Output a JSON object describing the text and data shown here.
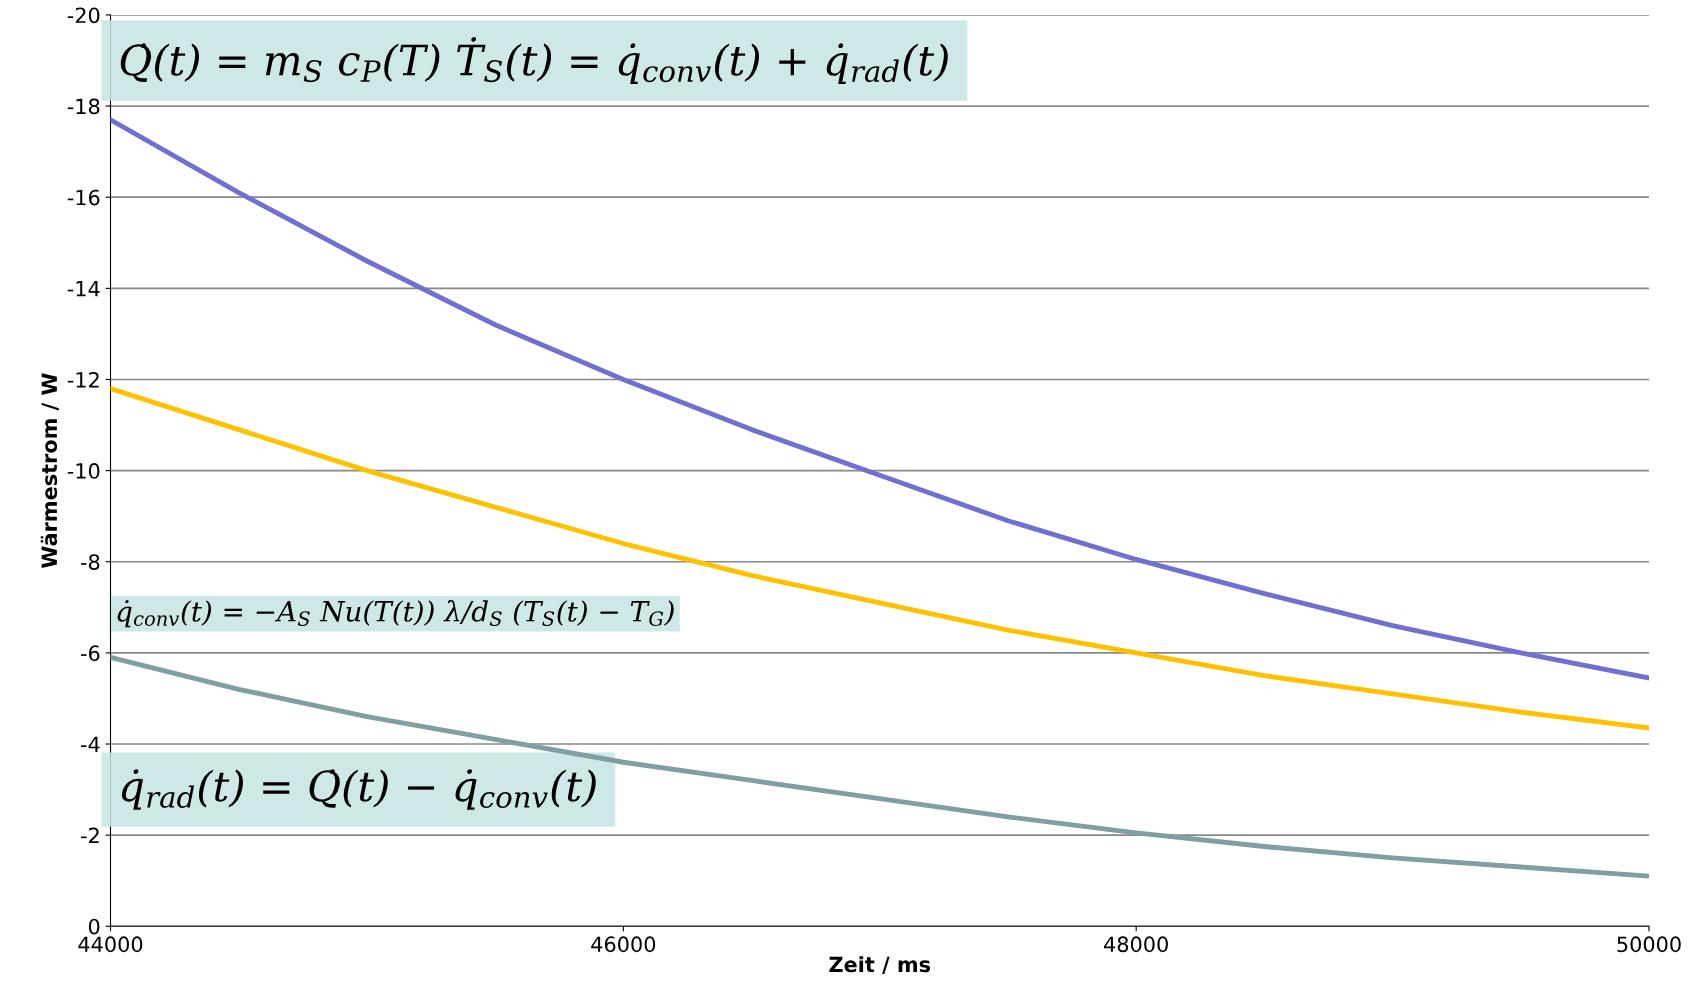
{
  "chart_data": {
    "type": "line",
    "xlabel": "Zeit / ms",
    "ylabel": "Wärmestrom / W",
    "x": [
      44000,
      44500,
      45000,
      45500,
      46000,
      46500,
      47000,
      47500,
      48000,
      48500,
      49000,
      49500,
      50000
    ],
    "series": [
      {
        "color": "#7070d0",
        "values": [
          -17.7,
          -16.1,
          -14.6,
          -13.2,
          -12.0,
          -10.9,
          -9.9,
          -8.9,
          -8.05,
          -7.3,
          -6.6,
          -6.0,
          -5.45
        ]
      },
      {
        "color": "#ffc000",
        "values": [
          -11.8,
          -10.9,
          -10.0,
          -9.2,
          -8.4,
          -7.7,
          -7.1,
          -6.5,
          -6.0,
          -5.5,
          -5.1,
          -4.7,
          -4.35
        ]
      },
      {
        "color": "#7f9fa0",
        "values": [
          -5.9,
          -5.2,
          -4.6,
          -4.1,
          -3.6,
          -3.2,
          -2.8,
          -2.4,
          -2.05,
          -1.75,
          -1.5,
          -1.3,
          -1.1
        ]
      }
    ],
    "annotations": [
      "Q̇(t) = m$_{S}$ c$_{P}$(T) Ṫ$_{S}$(t) = q̇$_{conv}$(t) + q̇$_{rad}$(t)",
      "q̇$_{conv}$(t) = −A$_{S}$ Nu(T(t)) λ/d$_{S}$ (T$_{S}$(t) − T$_{G}$)",
      "q̇$_{rad}$(t) = Q̇(t) − q̇$_{conv}$(t)"
    ],
    "xlim": [
      44000,
      50000
    ],
    "xticks": [
      44000,
      46000,
      48000,
      50000
    ],
    "ylim": [
      0,
      -20
    ],
    "yticks": [
      -20,
      -18,
      -16,
      -14,
      -12,
      -10,
      -8,
      -6,
      -4,
      -2,
      0
    ],
    "grid": "y",
    "legend": false,
    "marker": "none",
    "line_style": "solid"
  }
}
